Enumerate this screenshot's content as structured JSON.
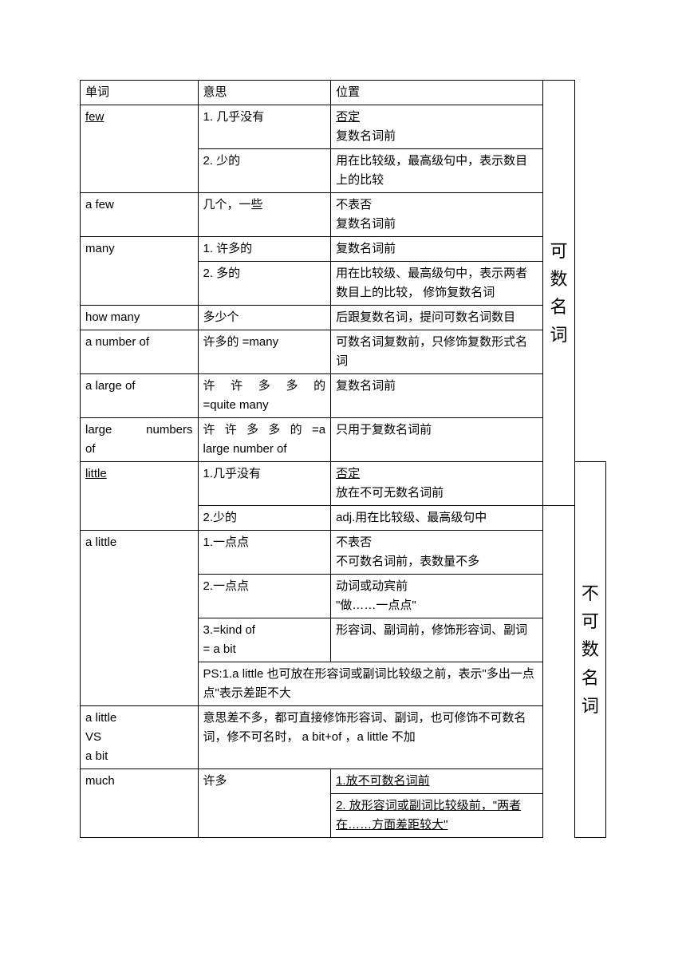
{
  "header": {
    "c1": "单词",
    "c2": "意思",
    "c3": "位置"
  },
  "vlabel1_chars": [
    "可",
    "数",
    "名",
    "词"
  ],
  "vlabel2_chars": [
    "不",
    "可",
    "数",
    "名",
    "词"
  ],
  "rows": {
    "few": {
      "word": "few",
      "m1": "1.  几乎没有",
      "p1a": "否定",
      "p1b": "复数名词前",
      "m2": "2.  少的",
      "p2": "用在比较级，最高级句中，表示数目上的比较"
    },
    "afew": {
      "word": "a few",
      "m": "几个，一些",
      "pa": "不表否",
      "pb": "复数名词前"
    },
    "many": {
      "word": "many",
      "m1": "1.  许多的",
      "p1": "复数名词前",
      "m2": "2.  多的",
      "p2": "用在比较级、最高级句中，表示两者数目上的比较，  修饰复数名词"
    },
    "howmany": {
      "word": "how many",
      "m": "多少个",
      "p": "后跟复数名词，提问可数名词数目"
    },
    "anumberof": {
      "word": "a number of",
      "m": "许多的 =many",
      "p": "可数名词复数前，只修饰复数形式名词"
    },
    "alargeof": {
      "word": "a large of",
      "m": "许许多多的=quite many",
      "p": "复数名词前"
    },
    "largenumbersof": {
      "word": "large numbers of",
      "m": "许许多多的 =a large number of",
      "p": "只用于复数名词前"
    },
    "little": {
      "word": "little ",
      "m1": "1.几乎没有",
      "p1a": "否定",
      "p1b": "放在不可无数名词前",
      "m2": "2.少的",
      "p2": "adj.用在比较级、最高级句中"
    },
    "alittle": {
      "word": "a little",
      "m1": "1.一点点",
      "p1a": "不表否",
      "p1b": "不可数名词前，表数量不多",
      "m2": "2.一点点",
      "p2a": "动词或动宾前",
      "p2b": "\"做……一点点\"",
      "m3a": "3.=kind of",
      "m3b": " = a bit",
      "p3": "  形容词、副词前，修饰形容词、副词",
      "ps": "PS:1.a little  也可放在形容词或副词比较级之前，表示\"多出一点点\"表示差距不大"
    },
    "alittlevs": {
      "w1": "a little",
      "w2": "VS",
      "w3": "a bit",
      "m": "意思差不多，都可直接修饰形容词、副词，也可修饰不可数名词，修不可名时，    a bit+of ，a little 不加"
    },
    "much": {
      "word": "much",
      "m": "许多",
      "p1": "1.放不可数名词前",
      "p2": "2. 放形容词或副词比较级前，\"两者在……方面差距较大\""
    }
  }
}
